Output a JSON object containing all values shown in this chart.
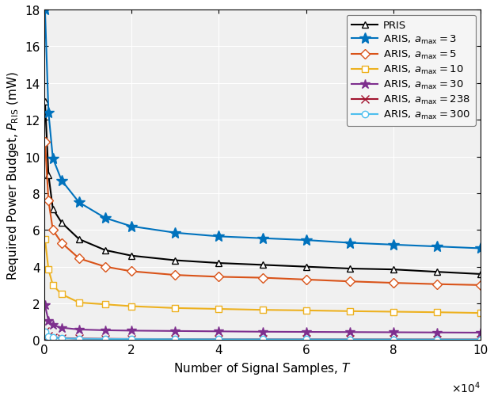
{
  "xlabel": "Number of Signal Samples, $T$",
  "ylabel": "Required Power Budget, $P_{\\mathrm{RIS}}$ (mW)",
  "xlim": [
    0,
    100000
  ],
  "ylim": [
    0,
    18
  ],
  "xticks": [
    0,
    20000,
    40000,
    60000,
    80000,
    100000
  ],
  "xticklabels": [
    "0",
    "2",
    "4",
    "6",
    "8",
    "10"
  ],
  "yticks": [
    0,
    2,
    4,
    6,
    8,
    10,
    12,
    14,
    16,
    18
  ],
  "series": [
    {
      "label": "PRIS",
      "color": "#000000",
      "marker": "^",
      "markersize": 6,
      "markerfacecolor": "white",
      "markeredgecolor": "#000000",
      "linewidth": 1.5,
      "x": [
        200,
        1000,
        2000,
        4000,
        8000,
        14000,
        20000,
        30000,
        40000,
        50000,
        60000,
        70000,
        80000,
        90000,
        100000
      ],
      "y": [
        13.0,
        9.0,
        7.15,
        6.4,
        5.5,
        4.9,
        4.6,
        4.35,
        4.2,
        4.1,
        4.0,
        3.9,
        3.85,
        3.72,
        3.6
      ]
    },
    {
      "label": "ARIS, $a_{\\mathrm{max}} = 3$",
      "color": "#0072BD",
      "marker": "*",
      "markersize": 10,
      "markerfacecolor": "#0072BD",
      "markeredgecolor": "#0072BD",
      "linewidth": 1.5,
      "x": [
        200,
        1000,
        2000,
        4000,
        8000,
        14000,
        20000,
        30000,
        40000,
        50000,
        60000,
        70000,
        80000,
        90000,
        100000
      ],
      "y": [
        18.0,
        12.4,
        9.9,
        8.7,
        7.5,
        6.65,
        6.2,
        5.85,
        5.65,
        5.55,
        5.45,
        5.3,
        5.2,
        5.1,
        5.0
      ]
    },
    {
      "label": "ARIS, $a_{\\mathrm{max}} = 5$",
      "color": "#D95319",
      "marker": "D",
      "markersize": 6,
      "markerfacecolor": "white",
      "markeredgecolor": "#D95319",
      "linewidth": 1.5,
      "x": [
        200,
        1000,
        2000,
        4000,
        8000,
        14000,
        20000,
        30000,
        40000,
        50000,
        60000,
        70000,
        80000,
        90000,
        100000
      ],
      "y": [
        10.8,
        7.6,
        6.0,
        5.3,
        4.45,
        4.0,
        3.75,
        3.55,
        3.45,
        3.4,
        3.3,
        3.2,
        3.12,
        3.05,
        3.0
      ]
    },
    {
      "label": "ARIS, $a_{\\mathrm{max}} = 10$",
      "color": "#EDB120",
      "marker": "s",
      "markersize": 6,
      "markerfacecolor": "white",
      "markeredgecolor": "#EDB120",
      "linewidth": 1.5,
      "x": [
        200,
        1000,
        2000,
        4000,
        8000,
        14000,
        20000,
        30000,
        40000,
        50000,
        60000,
        70000,
        80000,
        90000,
        100000
      ],
      "y": [
        5.5,
        3.85,
        3.0,
        2.5,
        2.05,
        1.95,
        1.85,
        1.75,
        1.7,
        1.65,
        1.62,
        1.58,
        1.55,
        1.52,
        1.48
      ]
    },
    {
      "label": "ARIS, $a_{\\mathrm{max}} = 30$",
      "color": "#7E2F8E",
      "marker": "*",
      "markersize": 9,
      "markerfacecolor": "#7E2F8E",
      "markeredgecolor": "#7E2F8E",
      "linewidth": 1.5,
      "x": [
        200,
        1000,
        2000,
        4000,
        8000,
        14000,
        20000,
        30000,
        40000,
        50000,
        60000,
        70000,
        80000,
        90000,
        100000
      ],
      "y": [
        1.9,
        1.05,
        0.82,
        0.68,
        0.58,
        0.54,
        0.52,
        0.5,
        0.48,
        0.46,
        0.45,
        0.44,
        0.43,
        0.42,
        0.41
      ]
    },
    {
      "label": "ARIS, $a_{\\mathrm{max}} = 238$",
      "color": "#A2142F",
      "marker": "x",
      "markersize": 7,
      "markerfacecolor": "#A2142F",
      "markeredgecolor": "#A2142F",
      "linewidth": 1.5,
      "x": [
        200,
        1000,
        2000,
        4000,
        8000,
        14000,
        20000,
        30000,
        40000,
        50000,
        60000,
        70000,
        80000,
        90000,
        100000
      ],
      "y": [
        0.5,
        0.22,
        0.16,
        0.12,
        0.09,
        0.075,
        0.065,
        0.058,
        0.053,
        0.05,
        0.047,
        0.045,
        0.043,
        0.041,
        0.04
      ]
    },
    {
      "label": "ARIS, $a_{\\mathrm{max}} = 300$",
      "color": "#4DBEEE",
      "marker": "o",
      "markersize": 6,
      "markerfacecolor": "white",
      "markeredgecolor": "#4DBEEE",
      "linewidth": 1.5,
      "x": [
        200,
        1000,
        2000,
        4000,
        8000,
        14000,
        20000,
        30000,
        40000,
        50000,
        60000,
        70000,
        80000,
        90000,
        100000
      ],
      "y": [
        0.45,
        0.19,
        0.14,
        0.1,
        0.08,
        0.065,
        0.058,
        0.052,
        0.048,
        0.045,
        0.043,
        0.041,
        0.039,
        0.037,
        0.036
      ]
    }
  ],
  "legend_loc": "upper right",
  "background_color": "#ffffff",
  "axes_facecolor": "#f0f0f0"
}
